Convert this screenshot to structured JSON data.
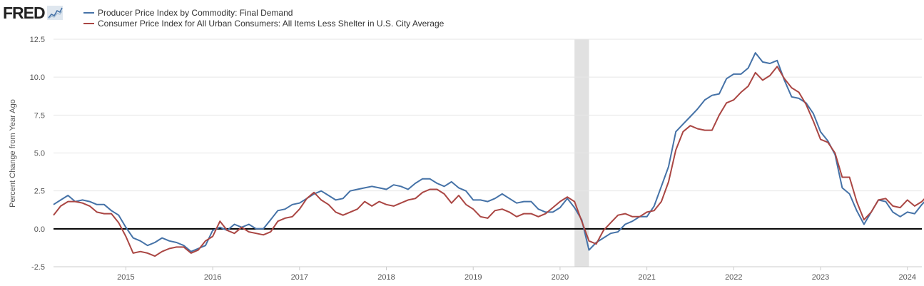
{
  "brand": {
    "logo_text": "FRED",
    "logo_icon": "chart-line-icon"
  },
  "legend": [
    {
      "label": "Producer Price Index by Commodity: Final Demand",
      "color": "#4572a7"
    },
    {
      "label": "Consumer Price Index for All Urban Consumers: All Items Less Shelter in U.S. City Average",
      "color": "#aa4643"
    }
  ],
  "colors": {
    "recession": "#e1e1e1",
    "zero_line": "#000000",
    "grid": "#e6e6e6"
  },
  "chart_data": {
    "type": "line",
    "ylabel": "Percent Change from Year Ago",
    "yticks": [
      "12.5",
      "10.0",
      "7.5",
      "5.0",
      "2.5",
      "0.0",
      "-2.5"
    ],
    "ytick_values": [
      12.5,
      10.0,
      7.5,
      5.0,
      2.5,
      0.0,
      -2.5
    ],
    "xticks": [
      "2015",
      "2016",
      "2017",
      "2018",
      "2019",
      "2020",
      "2021",
      "2022",
      "2023",
      "2024"
    ],
    "ylim": [
      -2.5,
      12.5
    ],
    "xlim": [
      "2014-03",
      "2024-03"
    ],
    "grid": true,
    "zero_line": true,
    "recession_shading": [
      {
        "start": "2020-03",
        "end": "2020-04"
      }
    ],
    "x_start": "2014-03",
    "x_frequency": "monthly",
    "series": [
      {
        "name": "Producer Price Index by Commodity: Final Demand",
        "color": "#4572a7",
        "values": [
          1.6,
          1.9,
          2.2,
          1.8,
          1.9,
          1.8,
          1.6,
          1.6,
          1.2,
          0.9,
          0.1,
          -0.6,
          -0.8,
          -1.1,
          -0.9,
          -0.6,
          -0.8,
          -0.9,
          -1.1,
          -1.5,
          -1.3,
          -1.1,
          -0.1,
          0.1,
          -0.1,
          0.3,
          0.1,
          0.3,
          0.0,
          0.0,
          0.6,
          1.2,
          1.3,
          1.6,
          1.7,
          2.0,
          2.3,
          2.5,
          2.2,
          1.9,
          2.0,
          2.5,
          2.6,
          2.7,
          2.8,
          2.7,
          2.6,
          2.9,
          2.8,
          2.6,
          3.0,
          3.3,
          3.3,
          3.0,
          2.8,
          3.1,
          2.7,
          2.5,
          1.9,
          1.9,
          1.8,
          2.0,
          2.3,
          2.0,
          1.7,
          1.8,
          1.8,
          1.3,
          1.1,
          1.1,
          1.4,
          2.0,
          1.4,
          0.6,
          -1.4,
          -0.9,
          -0.6,
          -0.3,
          -0.2,
          0.3,
          0.5,
          0.8,
          0.8,
          1.5,
          2.8,
          4.1,
          6.4,
          6.9,
          7.4,
          7.9,
          8.5,
          8.8,
          8.9,
          9.9,
          10.2,
          10.2,
          10.6,
          11.6,
          11.0,
          10.9,
          11.1,
          9.8,
          8.7,
          8.6,
          8.3,
          7.6,
          6.4,
          5.8,
          4.9,
          2.7,
          2.3,
          1.2,
          0.3,
          1.1,
          1.9,
          1.8,
          1.1,
          0.8,
          1.1,
          1.0,
          1.6,
          2.1
        ]
      },
      {
        "name": "Consumer Price Index for All Urban Consumers: All Items Less Shelter in U.S. City Average",
        "color": "#aa4643",
        "values": [
          0.9,
          1.5,
          1.8,
          1.8,
          1.7,
          1.5,
          1.1,
          1.0,
          1.0,
          0.4,
          -0.5,
          -1.6,
          -1.5,
          -1.6,
          -1.8,
          -1.5,
          -1.3,
          -1.2,
          -1.2,
          -1.6,
          -1.4,
          -0.8,
          -0.5,
          0.5,
          -0.1,
          -0.3,
          0.1,
          -0.2,
          -0.3,
          -0.4,
          -0.2,
          0.5,
          0.7,
          0.8,
          1.3,
          2.0,
          2.4,
          1.9,
          1.6,
          1.1,
          0.9,
          1.1,
          1.3,
          1.8,
          1.5,
          1.8,
          1.6,
          1.5,
          1.7,
          1.9,
          2.0,
          2.4,
          2.6,
          2.6,
          2.3,
          1.7,
          2.2,
          1.6,
          1.3,
          0.8,
          0.7,
          1.2,
          1.3,
          1.1,
          0.8,
          1.0,
          1.0,
          0.8,
          1.0,
          1.4,
          1.8,
          2.1,
          1.8,
          0.5,
          -0.8,
          -1.0,
          -0.1,
          0.4,
          0.9,
          1.0,
          0.8,
          0.8,
          1.1,
          1.2,
          1.8,
          3.1,
          5.2,
          6.4,
          6.8,
          6.6,
          6.5,
          6.5,
          7.5,
          8.3,
          8.5,
          9.0,
          9.4,
          10.3,
          9.8,
          10.1,
          10.7,
          9.9,
          9.3,
          9.0,
          8.2,
          7.1,
          5.9,
          5.7,
          5.0,
          3.4,
          3.4,
          1.8,
          0.6,
          1.1,
          1.9,
          2.0,
          1.5,
          1.4,
          1.9,
          1.5,
          1.8,
          2.3
        ]
      }
    ]
  }
}
